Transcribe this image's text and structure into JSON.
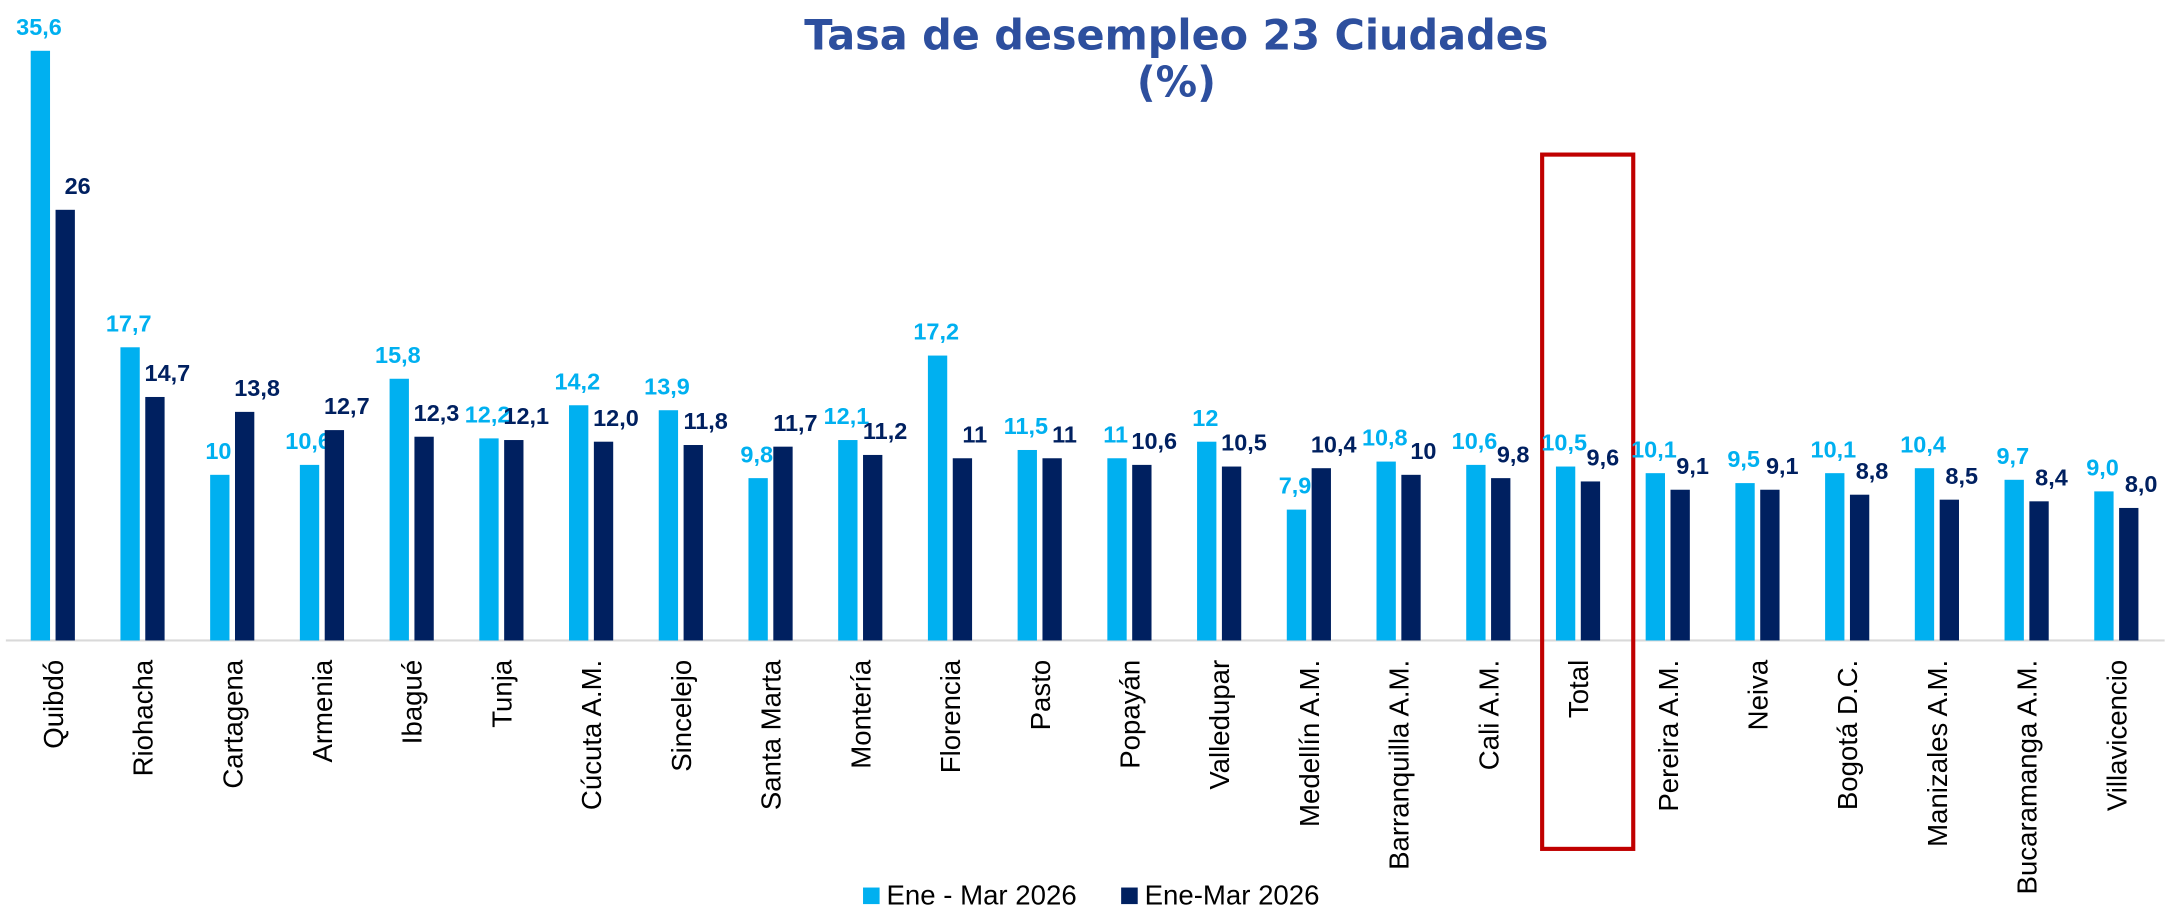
{
  "chart_data": {
    "type": "bar",
    "title": "Tasa de desempleo 23 Ciudades",
    "subtitle": "(%)",
    "categories": [
      "Quibdó",
      "Riohacha",
      "Cartagena",
      "Armenia",
      "Ibagué",
      "Tunja",
      "Cúcuta A.M.",
      "Sincelejo",
      "Santa Marta",
      "Montería",
      "Florencia",
      "Pasto",
      "Popayán",
      "Valledupar",
      "Medellín A.M.",
      "Barranquilla A.M.",
      "Cali A.M.",
      "Total",
      "Pereira A.M.",
      "Neiva",
      "Bogotá D.C.",
      "Manizales A.M.",
      "Bucaramanga A.M.",
      "Villavicencio"
    ],
    "series": [
      {
        "name": "Ene - Mar 2026",
        "color": "#00b0f0",
        "values": [
          35.6,
          17.7,
          10,
          10.6,
          15.8,
          12.2,
          14.2,
          13.9,
          9.8,
          12.1,
          17.2,
          11.5,
          11,
          12,
          7.9,
          10.8,
          10.6,
          10.5,
          10.1,
          9.5,
          10.1,
          10.4,
          9.7,
          9.0
        ],
        "value_labels": [
          "35,6",
          "17,7",
          "10",
          "10,6",
          "15,8",
          "12,2",
          "14,2",
          "13,9",
          "9,8",
          "12,1",
          "17,2",
          "11,5",
          "11",
          "12",
          "7,9",
          "10,8",
          "10,6",
          "10,5",
          "10,1",
          "9,5",
          "10,1",
          "10,4",
          "9,7",
          "9,0"
        ]
      },
      {
        "name": "Ene-Mar 2026",
        "color": "#002060",
        "values": [
          26,
          14.7,
          13.8,
          12.7,
          12.3,
          12.1,
          12.0,
          11.8,
          11.7,
          11.2,
          11,
          11,
          10.6,
          10.5,
          10.4,
          10,
          9.8,
          9.6,
          9.1,
          9.1,
          8.8,
          8.5,
          8.4,
          8.0
        ],
        "value_labels": [
          "26",
          "14,7",
          "13,8",
          "12,7",
          "12,3",
          "12,1",
          "12,0",
          "11,8",
          "11,7",
          "11,2",
          "11",
          "11",
          "10,6",
          "10,5",
          "10,4",
          "10",
          "9,8",
          "9,6",
          "9,1",
          "9,1",
          "8,8",
          "8,5",
          "8,4",
          "8,0"
        ]
      }
    ],
    "ylim": [
      0,
      38
    ]
  }
}
